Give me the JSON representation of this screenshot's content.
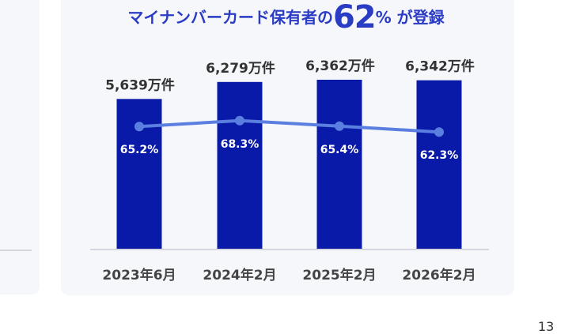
{
  "chart_title": {
    "prefix": "マイナンバーカード保有者の",
    "highlight": "62",
    "percent_sign": "%",
    "suffix": " が登録"
  },
  "chart_data": {
    "type": "bar",
    "title": "マイナンバーカード保有者の62% が登録",
    "categories": [
      "2023年6月",
      "2024年2月",
      "2025年2月",
      "2026年2月"
    ],
    "series": [
      {
        "type": "bar",
        "values": [
          5639,
          6279,
          6362,
          6342
        ],
        "unit": "万件",
        "labels": [
          "5,639万件",
          "6,279万件",
          "6,362万件",
          "6,342万件"
        ],
        "color": "#0a1aa8"
      },
      {
        "type": "line",
        "values": [
          65.2,
          68.3,
          65.4,
          62.3
        ],
        "unit": "%",
        "labels": [
          "65.2%",
          "68.3%",
          "65.4%",
          "62.3%"
        ],
        "color": "#5b7fe0"
      }
    ],
    "legend": "none",
    "grid": false
  },
  "colors": {
    "title": "#2a3bc4",
    "bar": "#0a1aa8",
    "line": "#5b7fe0",
    "card_background": "#f6f7fb"
  },
  "page_number": "13"
}
